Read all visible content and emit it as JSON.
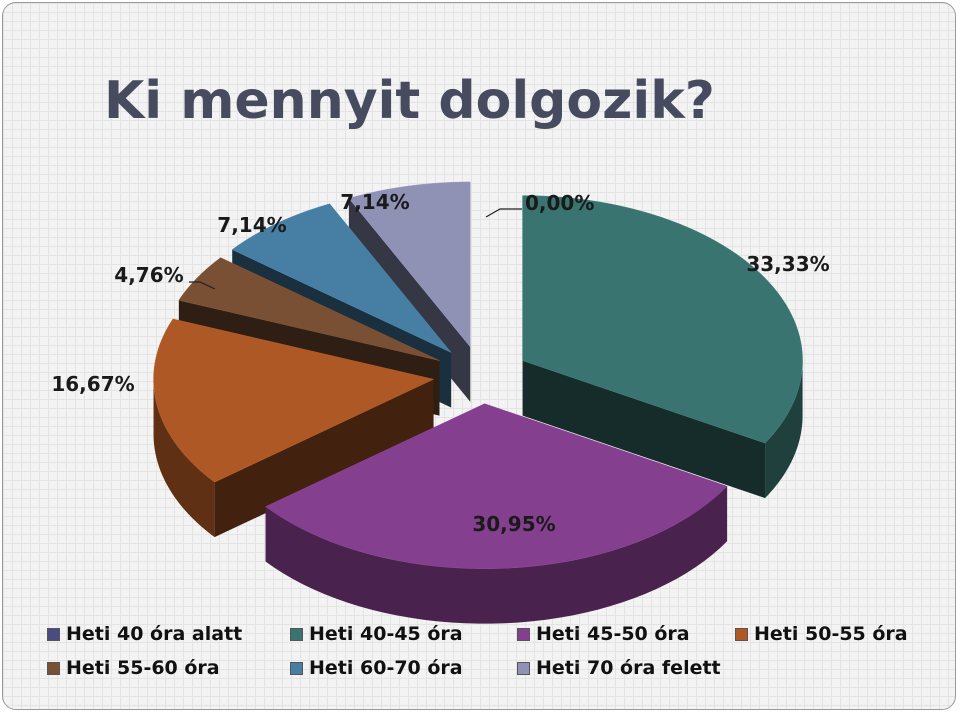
{
  "title": "Ki mennyit dolgozik?",
  "chart_data": {
    "type": "pie",
    "title": "Ki mennyit dolgozik?",
    "legend_position": "bottom",
    "slices": [
      {
        "name": "Heti 40 óra alatt",
        "value": 0.0,
        "label": "0,00%",
        "color": "#4b4a82"
      },
      {
        "name": "Heti 40-45 óra",
        "value": 33.33,
        "label": "33,33%",
        "color": "#3a7471"
      },
      {
        "name": "Heti 45-50 óra",
        "value": 30.95,
        "label": "30,95%",
        "color": "#84408e"
      },
      {
        "name": "Heti 50-55 óra",
        "value": 16.67,
        "label": "16,67%",
        "color": "#ad5825"
      },
      {
        "name": "Heti 55-60 óra",
        "value": 4.76,
        "label": "4,76%",
        "color": "#7a5035"
      },
      {
        "name": "Heti 60-70 óra",
        "value": 7.14,
        "label": "7,14%",
        "color": "#477fa4"
      },
      {
        "name": "Heti 70 óra felett",
        "value": 7.14,
        "label": "7,14%",
        "color": "#8f91b5"
      }
    ]
  }
}
